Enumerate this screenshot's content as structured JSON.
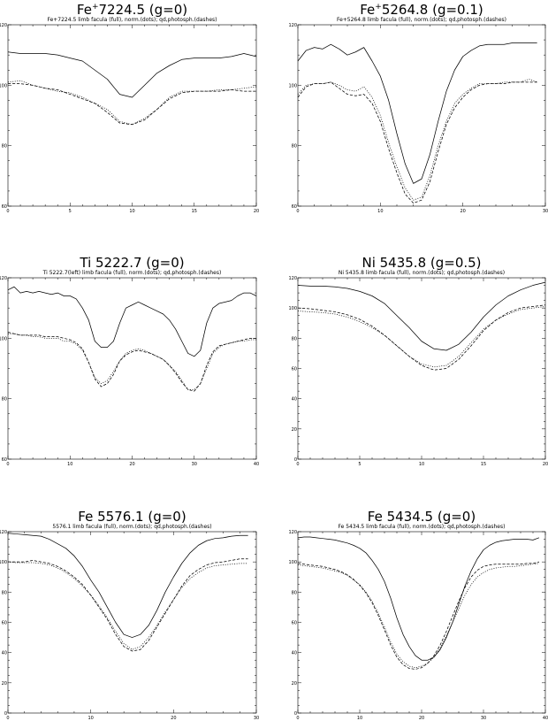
{
  "chart_data": [
    {
      "type": "line",
      "title_main": "Fe",
      "title_sup": "+",
      "title_rest": "7224.5 (g=0)",
      "subtitle": "Fe+7224.5 limb facula (full), norm.(dots); qd,photosph.(dashes)",
      "xlim": [
        0,
        20
      ],
      "ylim": [
        60,
        120
      ],
      "xticks": [
        0,
        5,
        10,
        15,
        20
      ],
      "yticks": [
        60,
        80,
        100,
        120
      ],
      "x": [
        0,
        1,
        2,
        3,
        4,
        5,
        6,
        7,
        8,
        9,
        10,
        11,
        12,
        13,
        14,
        15,
        16,
        17,
        18,
        19,
        20
      ],
      "series": [
        {
          "style": "solid",
          "values": [
            111,
            110.5,
            110.5,
            110.5,
            110,
            109,
            108,
            105,
            102,
            97,
            96,
            100,
            104,
            106.5,
            108.5,
            109,
            109,
            109,
            109.5,
            110.5,
            109.5
          ]
        },
        {
          "style": "dotted",
          "values": [
            101,
            101.5,
            100,
            99,
            98,
            97.5,
            96,
            94,
            92,
            88,
            87,
            89,
            92,
            96,
            98,
            98,
            98,
            98.5,
            98.5,
            99,
            99.5
          ]
        },
        {
          "style": "dashed",
          "values": [
            100.5,
            100.5,
            100,
            99,
            98.5,
            97,
            95.5,
            94,
            91,
            87.5,
            87,
            88.5,
            92,
            95.5,
            97.5,
            98,
            98,
            98,
            98.5,
            98,
            98
          ]
        }
      ]
    },
    {
      "type": "line",
      "title_main": "Fe",
      "title_sup": "+",
      "title_rest": "5264.8 (g=0.1)",
      "subtitle": "Fe+5264.8 limb facula (full), norm.(dots); qd,photosph.(dashes)",
      "xlim": [
        0,
        30
      ],
      "ylim": [
        60,
        120
      ],
      "xticks": [
        0,
        10,
        20,
        30
      ],
      "yticks": [
        60,
        80,
        100,
        120
      ],
      "x": [
        0,
        1,
        2,
        3,
        4,
        5,
        6,
        7,
        8,
        9,
        10,
        11,
        12,
        13,
        14,
        15,
        16,
        17,
        18,
        19,
        20,
        21,
        22,
        23,
        24,
        25,
        26,
        27,
        28,
        29
      ],
      "series": [
        {
          "style": "solid",
          "values": [
            108,
            111.5,
            112.5,
            112,
            113.5,
            112,
            110,
            111,
            112.5,
            108,
            103,
            95,
            84,
            74,
            67.5,
            69,
            77,
            88,
            98,
            105,
            109.5,
            111.5,
            113,
            113.5,
            113.5,
            113.5,
            114,
            114,
            114,
            114
          ]
        },
        {
          "style": "dotted",
          "values": [
            97,
            100,
            100.5,
            100.5,
            101,
            100,
            98.5,
            98,
            99.5,
            96,
            90,
            81,
            73,
            66,
            62,
            63,
            70,
            80,
            88,
            94,
            97,
            99,
            100.5,
            100.5,
            100.5,
            101,
            101,
            101,
            102,
            101
          ]
        },
        {
          "style": "dashed",
          "values": [
            96,
            99.5,
            100.5,
            100.5,
            101,
            99,
            97,
            96.5,
            97,
            94,
            88,
            79,
            71,
            64,
            61,
            62,
            68,
            78,
            87,
            92.5,
            96,
            98.5,
            100,
            100.5,
            100.5,
            100.5,
            101,
            101,
            101,
            101
          ]
        }
      ]
    },
    {
      "type": "line",
      "title_main": "Ti",
      "title_sup": "",
      "title_rest": " 5222.7 (g=0)",
      "subtitle": "Ti 5222.7(left) limb facula (full), norm.(dots); qd,photosph.(dashes)",
      "xlim": [
        0,
        40
      ],
      "ylim": [
        60,
        120
      ],
      "xticks": [
        0,
        10,
        20,
        30,
        40
      ],
      "yticks": [
        60,
        80,
        100,
        120
      ],
      "x": [
        0,
        1,
        2,
        3,
        4,
        5,
        6,
        7,
        8,
        9,
        10,
        11,
        12,
        13,
        14,
        15,
        16,
        17,
        18,
        19,
        20,
        21,
        22,
        23,
        24,
        25,
        26,
        27,
        28,
        29,
        30,
        31,
        32,
        33,
        34,
        35,
        36,
        37,
        38,
        39,
        40
      ],
      "series": [
        {
          "style": "solid",
          "values": [
            116,
            117,
            115,
            115.5,
            115,
            115.5,
            115,
            114.5,
            115,
            114,
            114,
            113,
            110,
            106,
            99,
            97,
            97,
            99,
            105,
            110,
            111,
            112,
            111,
            110,
            109,
            108,
            106,
            103,
            99,
            95,
            94,
            96,
            105,
            110,
            111.5,
            112,
            112.5,
            114,
            115,
            115,
            114
          ]
        },
        {
          "style": "dotted",
          "values": [
            101.5,
            101.5,
            101,
            101,
            100.5,
            100.5,
            100,
            100,
            100,
            99,
            99,
            98,
            96,
            92,
            87,
            85,
            86,
            89,
            92.5,
            95,
            96,
            96.5,
            96,
            95,
            94,
            93,
            91,
            89,
            86,
            83,
            83,
            85,
            90,
            95,
            97,
            98,
            98.5,
            99,
            99,
            99.5,
            99.5
          ]
        },
        {
          "style": "dashed",
          "values": [
            102,
            101.5,
            101,
            101,
            101,
            101,
            100.5,
            100.5,
            100.5,
            100,
            99.5,
            98.5,
            96.5,
            92,
            86.5,
            84,
            85,
            88,
            92.5,
            94.5,
            95.5,
            96,
            95.5,
            95,
            94,
            93,
            91,
            88.5,
            85.5,
            83,
            82.5,
            85,
            91,
            95.5,
            97.5,
            98,
            98.5,
            99,
            99.5,
            100,
            100
          ]
        }
      ]
    },
    {
      "type": "line",
      "title_main": "Ni",
      "title_sup": "",
      "title_rest": " 5435.8 (g=0.5)",
      "subtitle": "Ni 5435.8 limb facula (full), norm.(dots); qd,photosph.(dashes)",
      "xlim": [
        0,
        20
      ],
      "ylim": [
        0,
        120
      ],
      "xticks": [
        0,
        5,
        10,
        15,
        20
      ],
      "yticks": [
        0,
        20,
        40,
        60,
        80,
        100,
        120
      ],
      "x": [
        0,
        1,
        2,
        3,
        4,
        5,
        6,
        7,
        8,
        9,
        10,
        11,
        12,
        13,
        14,
        15,
        16,
        17,
        18,
        19,
        20
      ],
      "series": [
        {
          "style": "solid",
          "values": [
            115,
            114.5,
            114.5,
            114,
            113,
            111,
            108,
            103,
            95,
            87,
            78,
            73,
            72,
            76,
            84,
            94,
            102,
            108,
            112,
            115,
            117
          ]
        },
        {
          "style": "dotted",
          "values": [
            98,
            97.5,
            97,
            96,
            94,
            91,
            87,
            82,
            75,
            68,
            63,
            61,
            62,
            68,
            77,
            86,
            92,
            96,
            99,
            100,
            101
          ]
        },
        {
          "style": "dashed",
          "values": [
            100,
            99.5,
            98.5,
            97.5,
            95.5,
            92.5,
            88,
            82,
            75,
            68,
            62,
            59,
            60,
            66,
            75,
            85,
            92,
            97,
            100,
            101,
            102
          ]
        }
      ]
    },
    {
      "type": "line",
      "title_main": "Fe",
      "title_sup": "",
      "title_rest": " 5576.1 (g=0)",
      "subtitle": "5576.1 limb facula (full), norm.(dots); qd,photosph.(dashes)",
      "xlim": [
        0,
        30
      ],
      "ylim": [
        0,
        120
      ],
      "xticks": [
        0,
        10,
        20,
        30
      ],
      "yticks": [
        0,
        20,
        40,
        60,
        80,
        100,
        120
      ],
      "x": [
        0,
        1,
        2,
        3,
        4,
        5,
        6,
        7,
        8,
        9,
        10,
        11,
        12,
        13,
        14,
        15,
        16,
        17,
        18,
        19,
        20,
        21,
        22,
        23,
        24,
        25,
        26,
        27,
        28,
        29
      ],
      "series": [
        {
          "style": "solid",
          "values": [
            119,
            118.5,
            118,
            117.5,
            117,
            115,
            112,
            109,
            104,
            97,
            88,
            80,
            70,
            60,
            52,
            50,
            52,
            58,
            68,
            80,
            90,
            99,
            106,
            111,
            114,
            115.5,
            116,
            117,
            117.5,
            117.5
          ]
        },
        {
          "style": "dotted",
          "values": [
            100,
            99.5,
            99.5,
            99.5,
            99,
            98,
            96,
            93,
            89,
            84,
            78,
            71,
            63,
            54,
            46,
            42,
            44,
            50,
            58,
            67,
            75,
            83,
            89,
            93,
            96,
            97.5,
            98,
            98.5,
            99,
            99
          ]
        },
        {
          "style": "dashed",
          "values": [
            100,
            100,
            100,
            101,
            100,
            99,
            97,
            94,
            90,
            85,
            78,
            70,
            62,
            52,
            44,
            41,
            42,
            48,
            57,
            66,
            75,
            84,
            91,
            95,
            98,
            99.5,
            100,
            101,
            102,
            102
          ]
        }
      ]
    },
    {
      "type": "line",
      "title_main": "Fe",
      "title_sup": "",
      "title_rest": " 5434.5 (g=0)",
      "subtitle": "Fe 5434.5 limb facula (full), norm.(dots); qd,photosph.(dashes)",
      "xlim": [
        0,
        40
      ],
      "ylim": [
        0,
        120
      ],
      "xticks": [
        0,
        10,
        20,
        30,
        40
      ],
      "yticks": [
        0,
        20,
        40,
        60,
        80,
        100,
        120
      ],
      "x": [
        0,
        1,
        2,
        3,
        4,
        5,
        6,
        7,
        8,
        9,
        10,
        11,
        12,
        13,
        14,
        15,
        16,
        17,
        18,
        19,
        20,
        21,
        22,
        23,
        24,
        25,
        26,
        27,
        28,
        29,
        30,
        31,
        32,
        33,
        34,
        35,
        36,
        37,
        38,
        39
      ],
      "series": [
        {
          "style": "solid",
          "values": [
            116,
            116.5,
            116.5,
            116,
            115.5,
            115,
            114.5,
            113.5,
            112.5,
            111,
            109,
            106,
            101,
            95,
            87,
            76,
            63,
            52,
            44,
            38,
            35,
            35,
            37,
            42,
            50,
            60,
            72,
            84,
            94,
            102,
            108,
            111,
            113,
            114,
            114.5,
            115,
            115,
            115,
            114.5,
            116
          ]
        },
        {
          "style": "dotted",
          "values": [
            98,
            97.5,
            97,
            96.5,
            96,
            95,
            94,
            93,
            91,
            88,
            85,
            80,
            74,
            66,
            57,
            47,
            39,
            34,
            31,
            30,
            31,
            33,
            37,
            43,
            51,
            60,
            69,
            78,
            85,
            90,
            93,
            95,
            96,
            96.5,
            97,
            97,
            97.5,
            98,
            98.5,
            99
          ]
        },
        {
          "style": "dashed",
          "values": [
            99,
            98.5,
            98,
            97.5,
            97,
            96,
            95,
            93.5,
            91.5,
            88.5,
            84.5,
            79.5,
            73,
            64.5,
            55,
            45,
            37,
            32,
            29.5,
            29,
            30,
            33,
            38,
            45,
            54,
            64,
            74,
            83,
            90,
            94.5,
            97,
            98,
            98.5,
            98.5,
            98.5,
            98.5,
            98.5,
            99,
            99,
            100
          ]
        }
      ]
    }
  ]
}
